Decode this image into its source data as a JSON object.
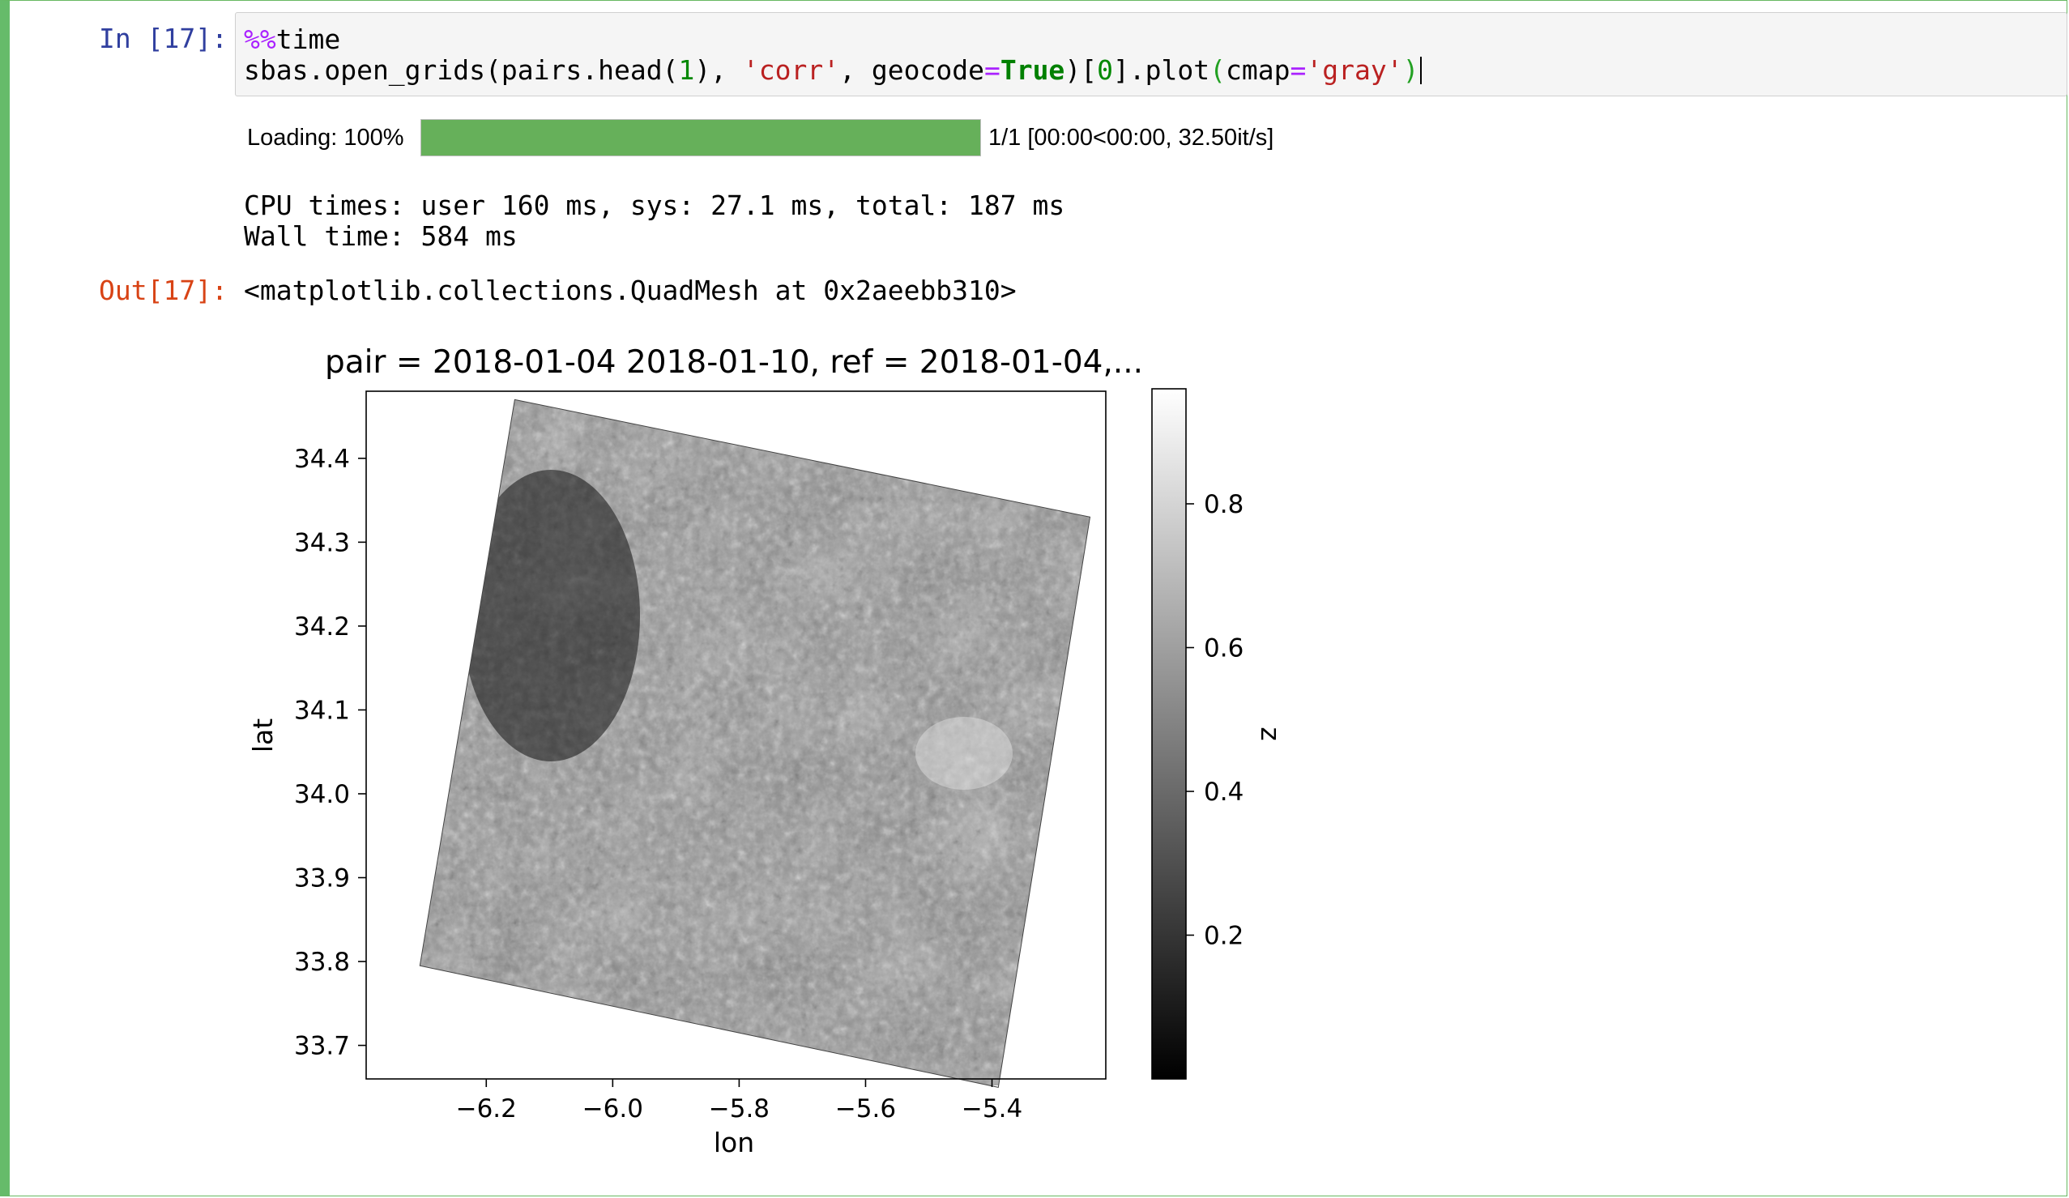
{
  "cell": {
    "in_prompt": "In [17]:",
    "out_prompt": "Out[17]:",
    "code": {
      "line1_magic": "%%",
      "line1_rest": "time",
      "line2_tokens": {
        "t1": "sbas.open_grids(pairs.head(",
        "t2": "1",
        "t3": "), ",
        "t4": "'corr'",
        "t5": ", geocode",
        "t6": "=",
        "t7": "True",
        "t8": ")[",
        "t9": "0",
        "t10": "].plot",
        "t11": "(",
        "t12": "cmap",
        "t13": "=",
        "t14": "'gray'",
        "t15": ")"
      }
    },
    "progress": {
      "label": "Loading: 100%",
      "percent": 100,
      "status": "1/1 [00:00<00:00, 32.50it/s]",
      "color": "#66b05a"
    },
    "stdout": {
      "cpu": "CPU times: user 160 ms, sys: 27.1 ms, total: 187 ms",
      "wall": "Wall time: 584 ms"
    },
    "output_repr": "<matplotlib.collections.QuadMesh at 0x2aeebb310>"
  },
  "chart_data": {
    "type": "heatmap",
    "title": "pair = 2018-01-04 2018-01-10, ref = 2018-01-04,...",
    "xlabel": "lon",
    "ylabel": "lat",
    "colorbar_label": "z",
    "cmap": "gray",
    "xlim": [
      -6.39,
      -5.22
    ],
    "ylim": [
      33.66,
      34.48
    ],
    "x_ticks": [
      -6.2,
      -6.0,
      -5.8,
      -5.6,
      -5.4
    ],
    "x_tick_labels": [
      "−6.2",
      "−6.0",
      "−5.8",
      "−5.6",
      "−5.4"
    ],
    "y_ticks": [
      33.7,
      33.8,
      33.9,
      34.0,
      34.1,
      34.2,
      34.3,
      34.4
    ],
    "y_tick_labels": [
      "33.7",
      "33.8",
      "33.9",
      "34.0",
      "34.1",
      "34.2",
      "34.3",
      "34.4"
    ],
    "colorbar_range": [
      0.0,
      0.96
    ],
    "colorbar_ticks": [
      0.2,
      0.4,
      0.6,
      0.8
    ],
    "colorbar_tick_labels": [
      "0.2",
      "0.4",
      "0.6",
      "0.8"
    ],
    "footprint_corners_lonlat": [
      [
        -6.155,
        34.47
      ],
      [
        -5.245,
        34.33
      ],
      [
        -5.39,
        33.65
      ],
      [
        -6.305,
        33.795
      ]
    ]
  }
}
